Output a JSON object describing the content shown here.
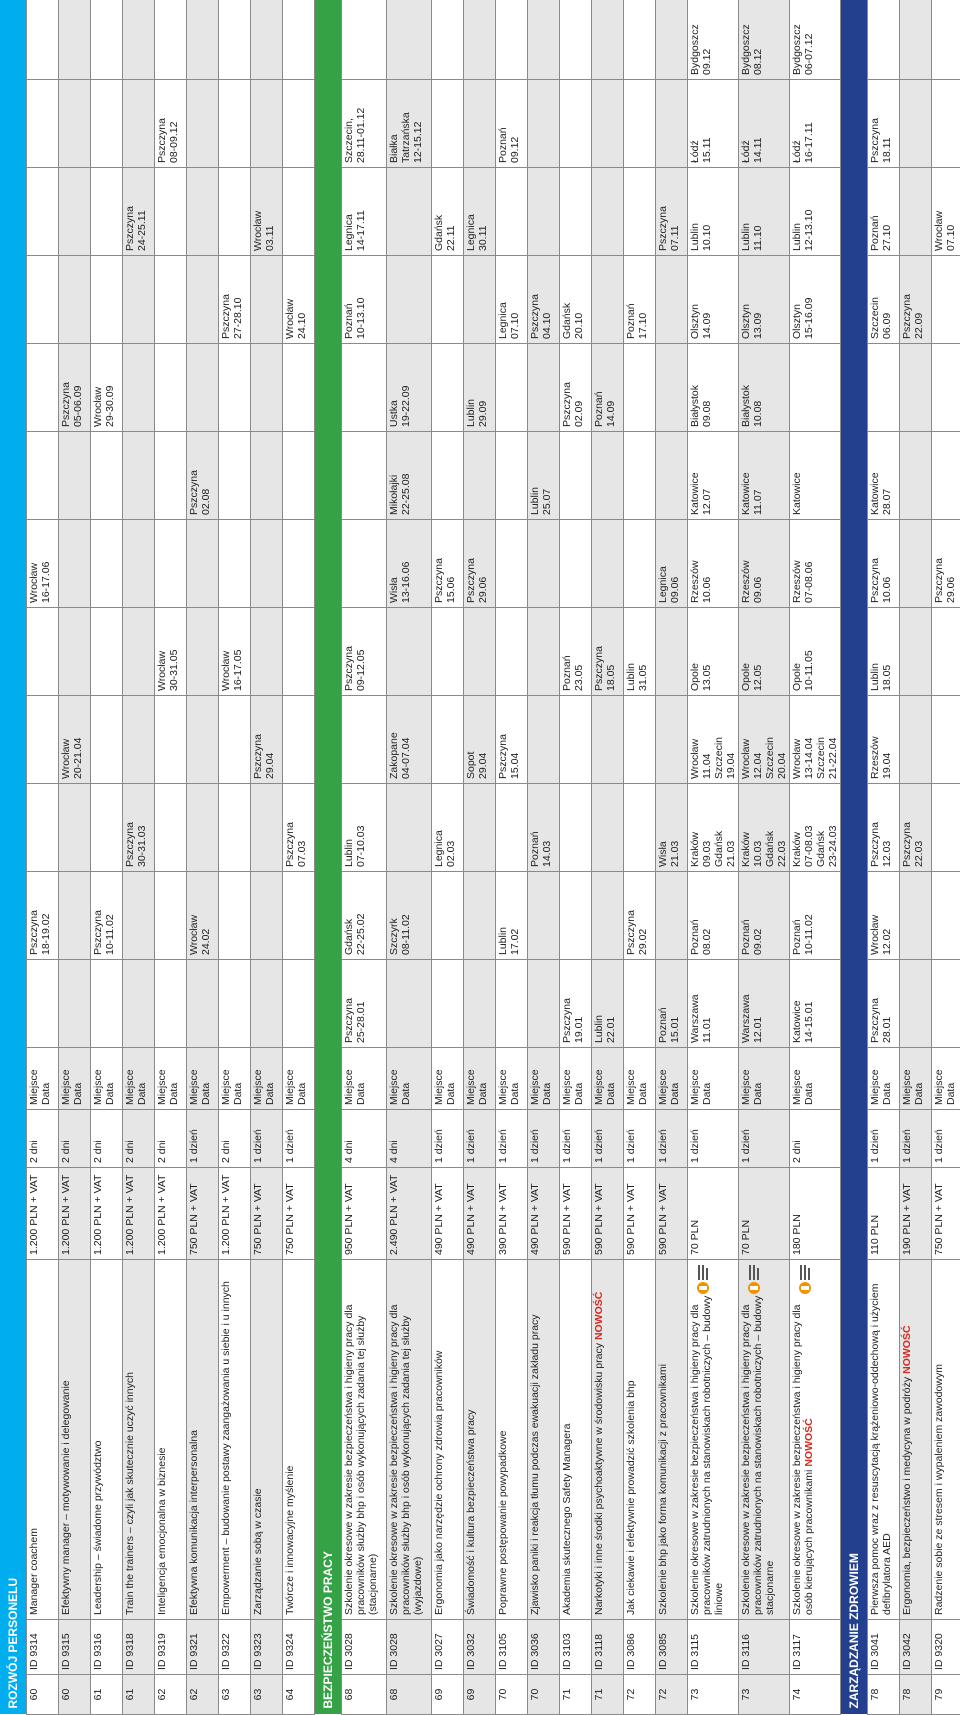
{
  "colors": {
    "rozwoj": "#00aeef",
    "bhp": "#34a245",
    "zdrowie": "#23408f",
    "new": "#d42a1f"
  },
  "sections": [
    {
      "title": "ROZWÓJ PERSONELU",
      "color_key": "rozwoj",
      "rows": [
        {
          "page": "60",
          "id": "ID 9314",
          "title": "Manager coachem",
          "price": "1.200 PLN + VAT",
          "duration": "2 dni",
          "label": "Miejsce\nData",
          "dates": [
            "",
            "Pszczyna\n18-19.02",
            "",
            "",
            "",
            "Wrocław\n16-17.06",
            "",
            "",
            "",
            "",
            ""
          ]
        },
        {
          "page": "60",
          "id": "ID 9315",
          "title": "Efektywny manager – motywowanie i delegowanie",
          "price": "1.200 PLN + VAT",
          "duration": "2 dni",
          "label": "Miejsce\nData",
          "dates": [
            "",
            "",
            "",
            "Wrocław\n20-21.04",
            "",
            "",
            "",
            "Pszczyna\n05-06.09",
            "",
            "",
            ""
          ]
        },
        {
          "page": "61",
          "id": "ID 9316",
          "title": "Leadership – świadome przywództwo",
          "price": "1.200 PLN + VAT",
          "duration": "2 dni",
          "label": "Miejsce\nData",
          "dates": [
            "",
            "Pszczyna\n10-11.02",
            "",
            "",
            "",
            "",
            "",
            "Wrocław\n29-30.09",
            "",
            "",
            ""
          ]
        },
        {
          "page": "61",
          "id": "ID 9318",
          "title": "Train the trainers – czyli jak skutecznie uczyć innych",
          "price": "1.200 PLN + VAT",
          "duration": "2 dni",
          "label": "Miejsce\nData",
          "dates": [
            "",
            "",
            "Pszczyna\n30-31.03",
            "",
            "",
            "",
            "",
            "",
            "",
            "Pszczyna\n24-25.11",
            ""
          ]
        },
        {
          "page": "62",
          "id": "ID 9319",
          "title": "Inteligencja emocjonalna w biznesie",
          "price": "1.200 PLN + VAT",
          "duration": "2 dni",
          "label": "Miejsce\nData",
          "dates": [
            "",
            "",
            "",
            "",
            "Wrocław\n30-31.05",
            "",
            "",
            "",
            "",
            "",
            "Pszczyna\n08-09.12"
          ]
        },
        {
          "page": "62",
          "id": "ID 9321",
          "title": "Efektywna komunikacja interpersonalna",
          "price": "750 PLN + VAT",
          "duration": "1 dzień",
          "label": "Miejsce\nData",
          "dates": [
            "",
            "Wrocław\n24.02",
            "",
            "",
            "",
            "",
            "Pszczyna\n02.08",
            "",
            "",
            "",
            ""
          ]
        },
        {
          "page": "63",
          "id": "ID 9322",
          "title": "Empowerment – budowanie postawy zaangażowania u siebie i u innych",
          "price": "1.200 PLN + VAT",
          "duration": "2 dni",
          "label": "Miejsce\nData",
          "dates": [
            "",
            "",
            "",
            "",
            "Wrocław\n16-17.05",
            "",
            "",
            "",
            "Pszczyna\n27-28.10",
            "",
            ""
          ]
        },
        {
          "page": "63",
          "id": "ID 9323",
          "title": "Zarządzanie sobą w czasie",
          "price": "750 PLN + VAT",
          "duration": "1 dzień",
          "label": "Miejsce\nData",
          "dates": [
            "",
            "",
            "",
            "Pszczyna\n29.04",
            "",
            "",
            "",
            "",
            "",
            "Wrocław\n03.11",
            ""
          ]
        },
        {
          "page": "64",
          "id": "ID 9324",
          "title": "Twórcze i innowacyjne myślenie",
          "price": "750 PLN + VAT",
          "duration": "1 dzień",
          "label": "Miejsce\nData",
          "dates": [
            "",
            "",
            "Pszczyna\n07.03",
            "",
            "",
            "",
            "",
            "",
            "Wrocław\n24.10",
            "",
            ""
          ]
        }
      ]
    },
    {
      "title": "BEZPIECZEŃSTWO PRACY",
      "color_key": "bhp",
      "rows": [
        {
          "page": "68",
          "id": "ID 3028",
          "title": "Szkolenie okresowe w zakresie bezpieczeństwa i higieny pracy dla pracowników służby bhp i osób wykonujących zadania tej służby (stacjonarne)",
          "price": "950 PLN + VAT",
          "duration": "4 dni",
          "label": "Miejsce\nData",
          "dates": [
            "Pszczyna\n25-28.01",
            "Gdańsk\n22-25.02",
            "Lublin\n07-10.03",
            "",
            "Pszczyna\n09-12.05",
            "",
            "",
            "",
            "Poznań\n10-13.10",
            "Legnica\n14-17.11",
            "Szczecin,\n28.11-01.12"
          ]
        },
        {
          "page": "68",
          "id": "ID 3028",
          "title": "Szkolenie okresowe w zakresie bezpieczeństwa i higieny pracy dla pracowników służby bhp i osób wykonujących zadania tej służby (wyjazdowe)",
          "price": "2.490 PLN + VAT",
          "duration": "4 dni",
          "label": "Miejsce\nData",
          "dates": [
            "",
            "Szczyrk\n08-11.02",
            "",
            "Zakopane\n04-07.04",
            "",
            "Wisła\n13-16.06",
            "Mikołajki\n22-25.08",
            "Ustka\n19-22.09",
            "",
            "",
            "Białka\nTatrzańska\n12-15.12"
          ]
        },
        {
          "page": "69",
          "id": "ID 3027",
          "title": "Ergonomia jako narzędzie ochrony zdrowia pracowników",
          "price": "490 PLN + VAT",
          "duration": "1 dzień",
          "label": "Miejsce\nData",
          "dates": [
            "",
            "",
            "Legnica\n02.03",
            "",
            "",
            "Pszczyna\n15.06",
            "",
            "",
            "",
            "Gdańsk\n22.11",
            ""
          ]
        },
        {
          "page": "69",
          "id": "ID 3032",
          "title": "Świadomość i kultura bezpieczeństwa pracy",
          "price": "490 PLN + VAT",
          "duration": "1 dzień",
          "label": "Miejsce\nData",
          "dates": [
            "",
            "",
            "",
            "Sopot\n29.04",
            "",
            "Pszczyna\n29.06",
            "",
            "Lublin\n29.09",
            "",
            "Legnica\n30.11",
            ""
          ]
        },
        {
          "page": "70",
          "id": "ID 3105",
          "title": "Poprawne postępowanie powypadkowe",
          "price": "390 PLN + VAT",
          "duration": "1 dzień",
          "label": "Miejsce\nData",
          "dates": [
            "",
            "Lublin\n17.02",
            "",
            "Pszczyna\n15.04",
            "",
            "",
            "",
            "",
            "Legnica\n07.10",
            "",
            "Poznań\n09.12"
          ]
        },
        {
          "page": "70",
          "id": "ID 3036",
          "title": "Zjawisko paniki i reakcja tłumu podczas ewakuacji zakładu pracy",
          "price": "490 PLN + VAT",
          "duration": "1 dzień",
          "label": "Miejsce\nData",
          "dates": [
            "",
            "",
            "Poznań\n14.03",
            "",
            "",
            "",
            "Lublin\n25.07",
            "",
            "Pszczyna\n04.10",
            "",
            ""
          ]
        },
        {
          "page": "71",
          "id": "ID 3103",
          "title": "Akademia skutecznego Safety Managera",
          "price": "590 PLN + VAT",
          "duration": "1 dzień",
          "label": "Miejsce\nData",
          "dates": [
            "Pszczyna\n19.01",
            "",
            "",
            "",
            "Poznań\n23.05",
            "",
            "",
            "Pszczyna\n02.09",
            "Gdańsk\n20.10",
            "",
            ""
          ]
        },
        {
          "page": "71",
          "id": "ID 3118",
          "title": "Narkotyki i inne środki psychoaktywne w środowisku pracy",
          "isNew": true,
          "price": "590 PLN + VAT",
          "duration": "1 dzień",
          "label": "Miejsce\nData",
          "dates": [
            "Lublin\n22.01",
            "",
            "",
            "",
            "Pszczyna\n18.05",
            "",
            "",
            "Poznań\n14.09",
            "",
            "",
            ""
          ]
        },
        {
          "page": "72",
          "id": "ID 3086",
          "title": "Jak ciekawie i efektywnie prowadzić szkolenia bhp",
          "price": "590 PLN + VAT",
          "duration": "1 dzień",
          "label": "Miejsce\nData",
          "dates": [
            "",
            "Pszczyna\n29.02",
            "",
            "",
            "Lublin\n31.05",
            "",
            "",
            "",
            "Poznań\n17.10",
            "",
            ""
          ]
        },
        {
          "page": "72",
          "id": "ID 3085",
          "title": "Szkolenie bhp jako forma komunikacji z pracownikami",
          "price": "590 PLN + VAT",
          "duration": "1 dzień",
          "label": "Miejsce\nData",
          "dates": [
            "Poznań\n15.01",
            "",
            "Wisła\n21.03",
            "",
            "",
            "Legnica\n09.06",
            "",
            "",
            "",
            "Pszczyna\n07.11",
            ""
          ]
        },
        {
          "page": "73",
          "id": "ID 3115",
          "title": "Szkolenie okresowe w zakresie bezpieczeństwa i higieny pracy dla pracowników zatrudnionych na stanowiskach robotniczych – budowy liniowe",
          "logo": true,
          "price": "70 PLN",
          "duration": "1 dzień",
          "label": "Miejsce\nData",
          "dates": [
            "Warszawa\n11.01",
            "Poznań\n08.02",
            "Kraków\n09.03\nGdańsk\n21.03",
            "Wrocław\n11.04\nSzczecin\n19.04",
            "Opole\n13.05",
            "Rzeszów\n10.06",
            "Katowice\n12.07",
            "Białystok\n09.08",
            "Olsztyn\n14.09",
            "Lublin\n10.10",
            "Łódź\n15.11",
            "Bydgoszcz\n09.12"
          ]
        },
        {
          "page": "73",
          "id": "ID 3116",
          "title": "Szkolenie okresowe w zakresie bezpieczeństwa i higieny pracy dla pracowników zatrudnionych na stanowiskach robotniczych – budowy stacjonarne",
          "logo": true,
          "price": "70 PLN",
          "duration": "1 dzień",
          "label": "Miejsce\nData",
          "dates": [
            "Warszawa\n12.01",
            "Poznań\n09.02",
            "Kraków\n10.03\nGdańsk\n22.03",
            "Wrocław\n12.04\nSzczecin\n20.04",
            "Opole\n12.05",
            "Rzeszów\n09.06",
            "Katowice\n11.07",
            "Białystok\n10.08",
            "Olsztyn\n13.09",
            "Lublin\n11.10",
            "Łódź\n14.11",
            "Bydgoszcz\n08.12"
          ]
        },
        {
          "page": "74",
          "id": "ID 3117",
          "title": "Szkolenie okresowe w zakresie bezpieczeństwa i higieny pracy dla osób kierujących pracownikami",
          "isNew": true,
          "logo": true,
          "price": "180 PLN",
          "duration": "2 dni",
          "label": "Miejsce\nData",
          "dates": [
            "Katowice\n14-15.01",
            "Poznań\n10-11.02",
            "Kraków\n07-08.03\nGdańsk\n23-24.03",
            "Wrocław\n13-14.04\nSzczecin\n21-22.04",
            "Opole\n10-11.05",
            "Rzeszów\n07-08.06",
            "Katowice\n",
            "",
            "Olsztyn\n15-16.09",
            "Lublin\n12-13.10",
            "Łódź\n16-17.11",
            "Bydgoszcz\n06-07.12"
          ]
        }
      ]
    },
    {
      "title": "ZARZĄDZANIE ZDROWIEM",
      "color_key": "zdrowie",
      "rows": [
        {
          "page": "78",
          "id": "ID 3041",
          "title": "Pierwsza pomoc wraz z resuscytacją krążeniowo-oddechową i użyciem defibrylatora AED",
          "price": "110 PLN",
          "duration": "1 dzień",
          "label": "Miejsce\nData",
          "dates": [
            "Pszczyna\n28.01",
            "Wrocław\n12.02",
            "Pszczyna\n12.03",
            "Rzeszów\n19.04",
            "Lublin\n18.05",
            "Pszczyna\n10.06",
            "Katowice\n28.07",
            "",
            "Szczecin\n06.09",
            "Poznań\n27.10",
            "Pszczyna\n18.11",
            ""
          ]
        },
        {
          "page": "78",
          "id": "ID 3042",
          "title": "Ergonomia, bezpieczeństwo i medycyna w podróży",
          "isNew": true,
          "price": "190 PLN + VAT",
          "duration": "1 dzień",
          "label": "Miejsce\nData",
          "dates": [
            "",
            "",
            "Pszczyna\n22.03",
            "",
            "",
            "",
            "",
            "",
            "Pszczyna\n22.09",
            "",
            "",
            ""
          ]
        },
        {
          "page": "79",
          "id": "ID 9320",
          "title": "Radzenie sobie ze stresem i wypaleniem zawodowym",
          "price": "750 PLN + VAT",
          "duration": "1 dzień",
          "label": "Miejsce\nData",
          "dates": [
            "",
            "",
            "",
            "",
            "",
            "Pszczyna\n29.06",
            "",
            "",
            "",
            "Wrocław\n07.10",
            "",
            ""
          ]
        }
      ]
    }
  ],
  "new_label": "NOWOŚĆ"
}
